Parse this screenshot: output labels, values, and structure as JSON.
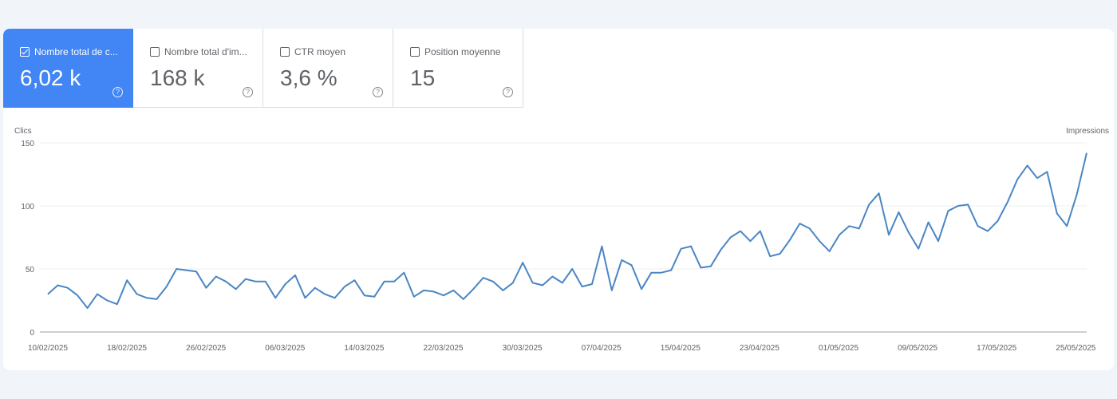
{
  "tiles": [
    {
      "label": "Nombre total de c...",
      "value": "6,02 k",
      "active": true
    },
    {
      "label": "Nombre total d'im...",
      "value": "168 k",
      "active": false
    },
    {
      "label": "CTR moyen",
      "value": "3,6 %",
      "active": false
    },
    {
      "label": "Position moyenne",
      "value": "15",
      "active": false
    }
  ],
  "help_glyph": "?",
  "colors": {
    "accent": "#4285f4",
    "line": "#4a86c4"
  },
  "chart_data": {
    "type": "line",
    "ylabel": "Clics",
    "y2label": "Impressions",
    "ylim": [
      0,
      150
    ],
    "yticks": [
      0,
      50,
      100,
      150
    ],
    "xticks": [
      "10/02/2025",
      "18/02/2025",
      "26/02/2025",
      "06/03/2025",
      "14/03/2025",
      "22/03/2025",
      "30/03/2025",
      "07/04/2025",
      "15/04/2025",
      "23/04/2025",
      "01/05/2025",
      "09/05/2025",
      "17/05/2025",
      "25/05/2025"
    ],
    "x_start": "2025-02-10",
    "grid": true,
    "series": [
      {
        "values": [
          30,
          37,
          35,
          29,
          19,
          30,
          25,
          22,
          41,
          30,
          27,
          26,
          36,
          50,
          49,
          48,
          35,
          44,
          40,
          34,
          42,
          40,
          40,
          27,
          38,
          45,
          27,
          35,
          30,
          27,
          36,
          41,
          29,
          28,
          40,
          40,
          47,
          28,
          33,
          32,
          29,
          33,
          26,
          34,
          43,
          40,
          33,
          39,
          55,
          39,
          37,
          44,
          39,
          50,
          36,
          38,
          68,
          33,
          57,
          53,
          34,
          47,
          47,
          49,
          66,
          68,
          51,
          52,
          65,
          75,
          80,
          72,
          80,
          60,
          62,
          73,
          86,
          82,
          72,
          64,
          77,
          84,
          82,
          101,
          110,
          77,
          95,
          79,
          66,
          87,
          72,
          96,
          100,
          101,
          84,
          80,
          88,
          103,
          121,
          132,
          122,
          127,
          94,
          84,
          109,
          142
        ]
      }
    ]
  }
}
